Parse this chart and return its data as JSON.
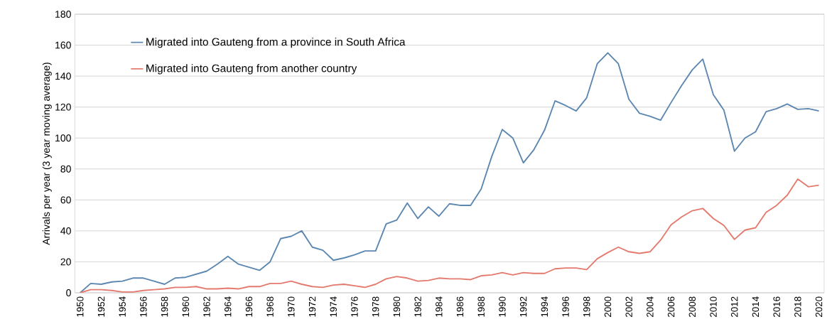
{
  "chart_data": {
    "type": "line",
    "ylabel": "Arrivals per year (3 year moving average)",
    "categories": [
      "1950",
      null,
      "1952",
      null,
      "1954",
      null,
      "1956",
      null,
      "1958",
      null,
      "1960",
      null,
      "1962",
      null,
      "1964",
      null,
      "1966",
      null,
      "1968",
      null,
      "1970",
      null,
      "1972",
      null,
      "1974",
      null,
      "1976",
      null,
      "1978",
      null,
      "1980",
      null,
      "1982",
      null,
      "1984",
      null,
      "1986",
      null,
      "1988",
      null,
      "1990",
      null,
      "1992",
      null,
      "1994",
      null,
      "1996",
      null,
      "1998",
      null,
      "2000",
      null,
      "2002",
      null,
      "2004",
      null,
      "2006",
      null,
      "2008",
      null,
      "2010",
      null,
      "2012",
      null,
      "2014",
      null,
      "2016",
      null,
      "2018",
      null,
      "2020"
    ],
    "series": [
      {
        "name": "Migrated into Gauteng from a province in South Africa",
        "color": "#5b87b0",
        "values": [
          0,
          6,
          5.5,
          7,
          7.5,
          9.5,
          9.5,
          7.5,
          5.5,
          9.5,
          10,
          12,
          14,
          18.5,
          23.5,
          18.5,
          16.5,
          14.5,
          20,
          35,
          36.5,
          40,
          29.5,
          27.5,
          21,
          22.5,
          24.5,
          27,
          27,
          44.5,
          47,
          58,
          48,
          55.5,
          49.5,
          57.5,
          56.5,
          56.5,
          67,
          88,
          105.5,
          100,
          84,
          92.5,
          105,
          124,
          121,
          117.5,
          126,
          148,
          155,
          148,
          125,
          116,
          114,
          111.5,
          123,
          134,
          144,
          151,
          128,
          118,
          91.5,
          100,
          104,
          117,
          119,
          122,
          118.5,
          119,
          117.5
        ]
      },
      {
        "name": "Migrated into Gauteng from another country",
        "color": "#e47a6e",
        "values": [
          0,
          2,
          2,
          1.5,
          0.5,
          0.5,
          1.5,
          2,
          2.5,
          3.5,
          3.5,
          4,
          2.5,
          2.5,
          3,
          2.5,
          4,
          4,
          6,
          6,
          7.5,
          5.5,
          4,
          3.5,
          5,
          5.5,
          4.5,
          3.5,
          5.5,
          9,
          10.5,
          9.5,
          7.5,
          8,
          9.5,
          9,
          9,
          8.5,
          11,
          11.5,
          13,
          11.5,
          13,
          12.5,
          12.5,
          15.5,
          16,
          16,
          15,
          22,
          26,
          29.5,
          26.5,
          25.5,
          26.5,
          34,
          44,
          49,
          53,
          54.5,
          48,
          43.5,
          34.5,
          40.5,
          42,
          52,
          56.5,
          63,
          73.5,
          68.5,
          69.5
        ]
      }
    ],
    "ylim": [
      0,
      180
    ],
    "yticks": [
      0,
      20,
      40,
      60,
      80,
      100,
      120,
      140,
      160,
      180
    ],
    "grid": "y",
    "legend": "top left",
    "marker": "none",
    "line_style": "solid"
  }
}
